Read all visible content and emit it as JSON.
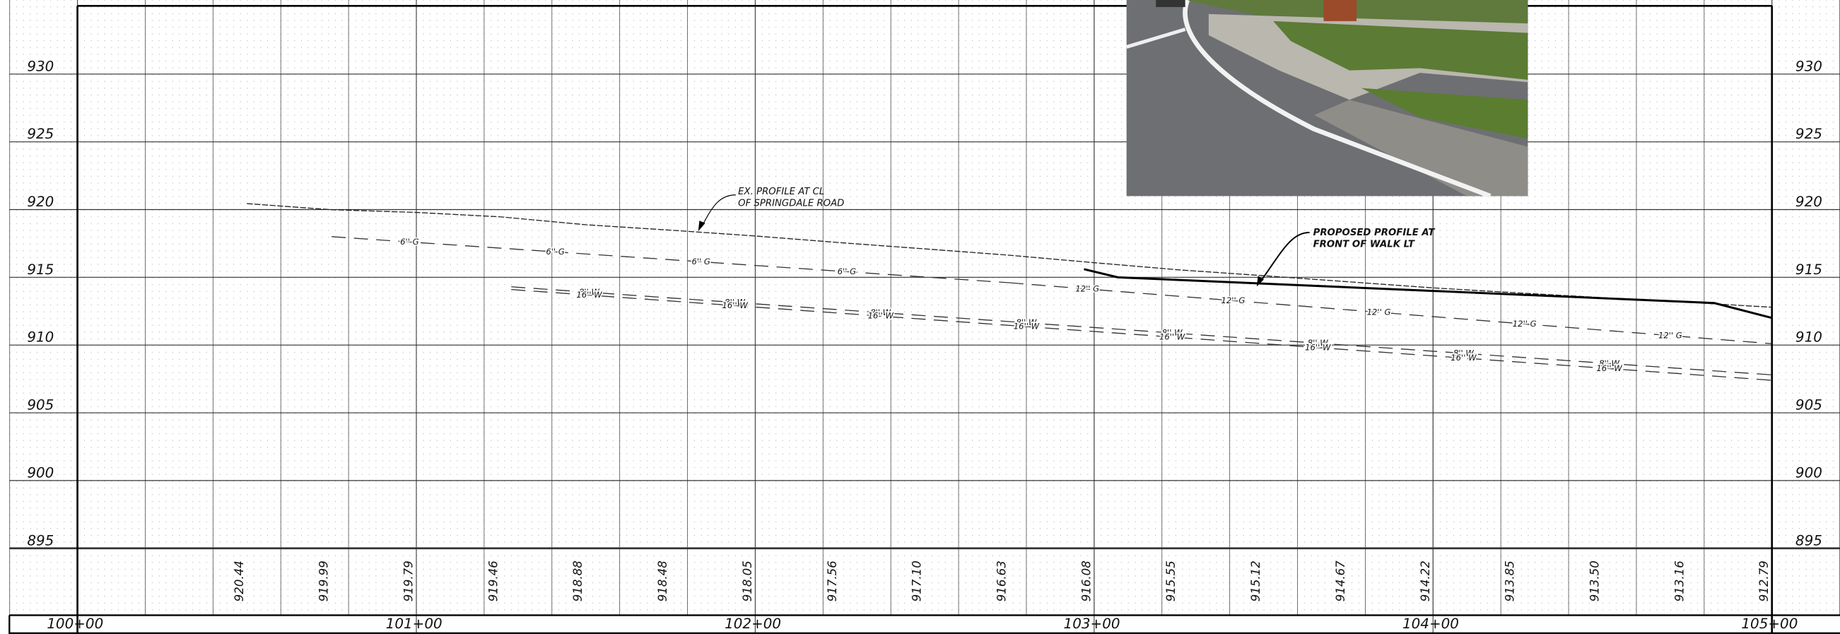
{
  "chart_data": {
    "type": "line",
    "xlim": [
      10000,
      10500
    ],
    "xticks": [
      {
        "value": 10000,
        "label": "100+00"
      },
      {
        "value": 10100,
        "label": "101+00"
      },
      {
        "value": 10200,
        "label": "102+00"
      },
      {
        "value": 10300,
        "label": "103+00"
      },
      {
        "value": 10400,
        "label": "104+00"
      },
      {
        "value": 10500,
        "label": "105+00"
      }
    ],
    "ylim": [
      895,
      935
    ],
    "yticks": [
      895,
      900,
      905,
      910,
      915,
      920,
      925,
      930
    ],
    "grid": true,
    "series": [
      {
        "color": "#222",
        "line_style": "dotted",
        "x": [
          10050,
          10075,
          10100,
          10125,
          10150,
          10175,
          10200,
          10225,
          10250,
          10275,
          10300,
          10325,
          10350,
          10375,
          10400,
          10425,
          10450,
          10475,
          10500
        ],
        "values": [
          920.44,
          919.99,
          919.79,
          919.46,
          918.88,
          918.48,
          918.05,
          917.56,
          917.1,
          916.63,
          916.08,
          915.55,
          915.12,
          914.67,
          914.22,
          913.85,
          913.5,
          913.16,
          912.79
        ],
        "value_labels": [
          "920.44",
          "919.99",
          "919.79",
          "919.46",
          "918.88",
          "918.48",
          "918.05",
          "917.56",
          "917.10",
          "916.63",
          "916.08",
          "915.55",
          "915.12",
          "914.67",
          "914.22",
          "913.85",
          "913.50",
          "913.16",
          "912.79"
        ]
      },
      {
        "name": "6'' G",
        "color": "#333",
        "line_style": "dashed",
        "x": [
          10075,
          10275
        ],
        "values": [
          918.0,
          914.6
        ]
      },
      {
        "name": "12'' G",
        "color": "#333",
        "line_style": "dashed",
        "x": [
          10275,
          10500
        ],
        "values": [
          914.6,
          910.1
        ]
      },
      {
        "name": "8'' W",
        "color": "#333",
        "line_style": "dashed",
        "x": [
          10128,
          10500
        ],
        "values": [
          914.3,
          907.8
        ]
      },
      {
        "name": "16'' W",
        "color": "#333",
        "line_style": "dashed",
        "x": [
          10128,
          10500
        ],
        "values": [
          914.1,
          907.4
        ]
      },
      {
        "color": "#000",
        "line_style": "solid",
        "x": [
          10297,
          10307,
          10483,
          10500
        ],
        "values": [
          915.6,
          915.0,
          913.1,
          912.0
        ]
      }
    ],
    "annotations": [
      [
        "EX. PROFILE AT CL",
        "OF SPRINGDALE ROAD"
      ],
      [
        "PROPOSED PROFILE AT",
        "FRONT OF WALK LT"
      ]
    ]
  }
}
